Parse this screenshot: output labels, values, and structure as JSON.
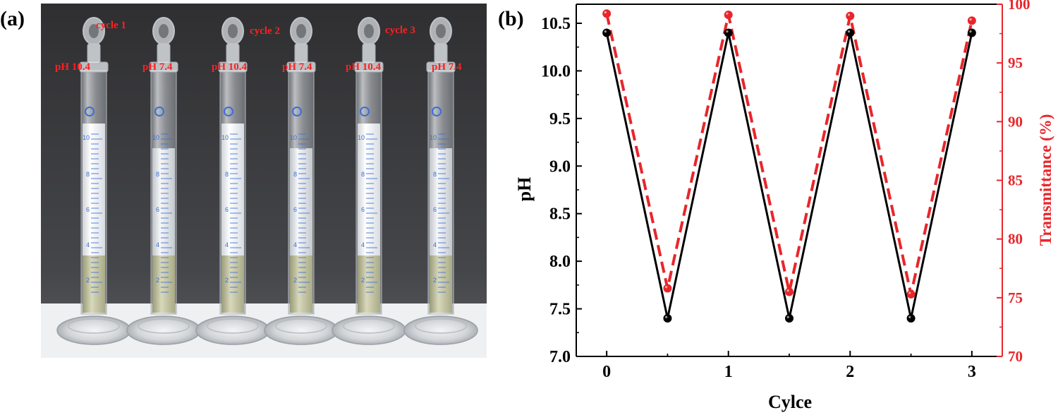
{
  "panels": {
    "a": {
      "label": "(a)"
    },
    "b": {
      "label": "(b)"
    }
  },
  "photo": {
    "cylinders": [
      {
        "ph_label": "pH 10.4",
        "cycle_label": "cycle 1",
        "foam": true
      },
      {
        "ph_label": "pH 7.4",
        "cycle_label": "",
        "foam": false
      },
      {
        "ph_label": "pH 10.4",
        "cycle_label": "cycle 2",
        "foam": true
      },
      {
        "ph_label": "pH 7.4",
        "cycle_label": "",
        "foam": false
      },
      {
        "ph_label": "pH 10.4",
        "cycle_label": "cycle 3",
        "foam": true
      },
      {
        "ph_label": "pH 7.4",
        "cycle_label": "",
        "foam": false
      }
    ],
    "scale_marks": [
      "10",
      "8",
      "6",
      "4",
      "2"
    ],
    "colors": {
      "label": "#ff2020",
      "background": "#3a3a3c",
      "graduation": "#3b6fd8"
    }
  },
  "chart_data": {
    "type": "line",
    "xlabel": "Cylce",
    "ylabel": "pH",
    "y2label": "Transmittance (%)",
    "xlim": [
      -0.25,
      3.25
    ],
    "ylim": [
      7.0,
      10.7
    ],
    "y2lim": [
      70,
      100
    ],
    "xticks": [
      0,
      1,
      2,
      3
    ],
    "yticks": [
      7.0,
      7.5,
      8.0,
      8.5,
      9.0,
      9.5,
      10.0,
      10.5
    ],
    "y2ticks": [
      70,
      75,
      80,
      85,
      90,
      95,
      100
    ],
    "grid": false,
    "series": [
      {
        "axis": "left",
        "color": "#000000",
        "line_style": "solid",
        "x": [
          0,
          0.5,
          1,
          1.5,
          2,
          2.5,
          3
        ],
        "values": [
          10.4,
          7.4,
          10.4,
          7.4,
          10.4,
          7.4,
          10.4
        ]
      },
      {
        "axis": "right",
        "color": "#e8262b",
        "line_style": "dashed",
        "x": [
          0,
          0.5,
          1,
          1.5,
          2,
          2.5,
          3
        ],
        "values": [
          99.2,
          75.8,
          99.1,
          75.5,
          99.0,
          75.3,
          98.6
        ]
      }
    ]
  }
}
